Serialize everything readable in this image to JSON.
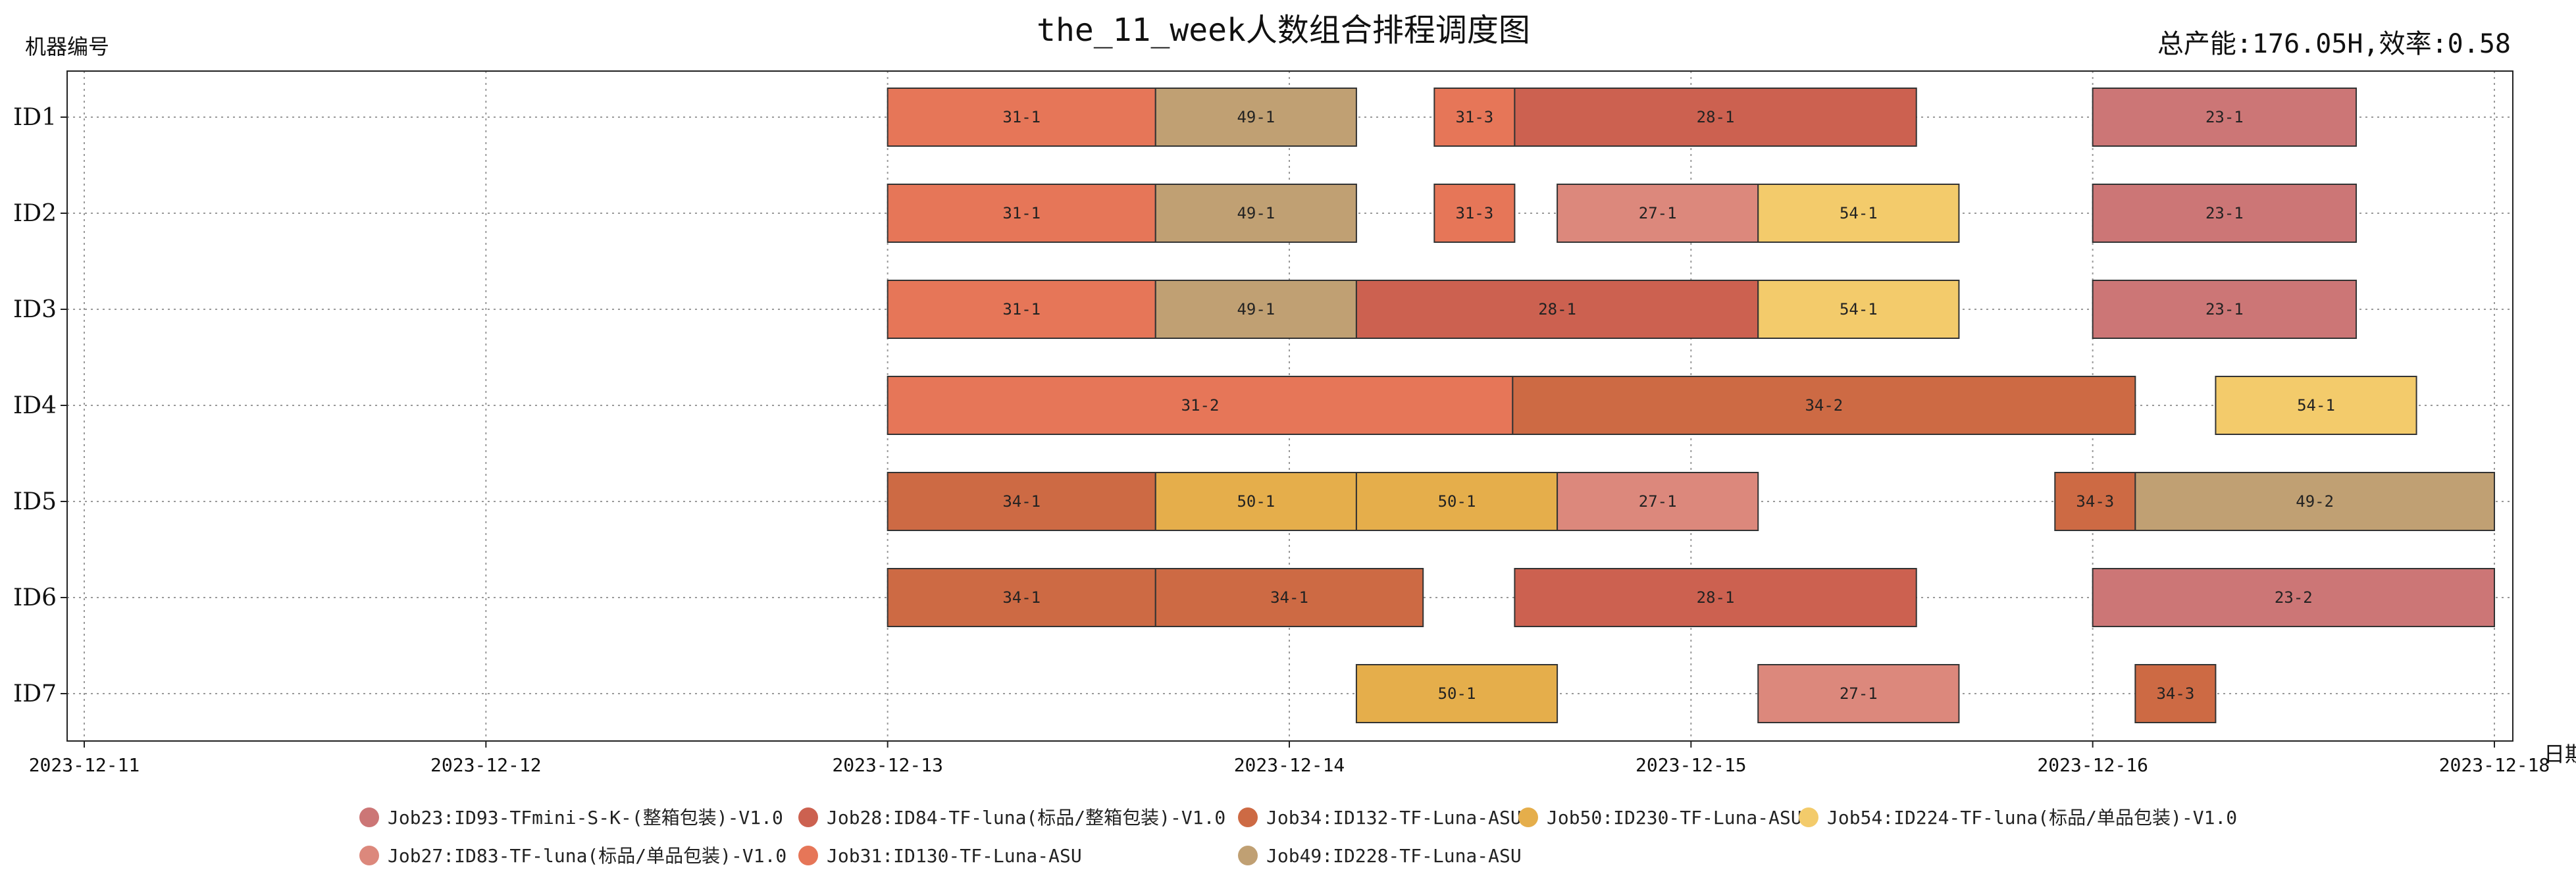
{
  "chart_data": {
    "type": "gantt",
    "title": "the_11_week人数组合排程调度图",
    "stats_text": "总产能:176.05H,效率:0.58",
    "ylabel": "机器编号",
    "xlabel": "日期",
    "machines": [
      "ID1",
      "ID2",
      "ID3",
      "ID4",
      "ID5",
      "ID6",
      "ID7"
    ],
    "x_ticks": [
      "2023-12-11",
      "2023-12-12",
      "2023-12-13",
      "2023-12-14",
      "2023-12-15",
      "2023-12-16",
      "2023-12-18"
    ],
    "x_range_days": [
      0,
      6
    ],
    "grid": true,
    "legend_position": "bottom",
    "jobs": [
      {
        "id": "Job23",
        "label": "Job23:ID93-TFmini-S-K-(整箱包装)-V1.0",
        "color": "#cc7676"
      },
      {
        "id": "Job28",
        "label": "Job28:ID84-TF-luna(标品/整箱包装)-V1.0",
        "color": "#cc6150"
      },
      {
        "id": "Job34",
        "label": "Job34:ID132-TF-Luna-ASU",
        "color": "#cd6a44"
      },
      {
        "id": "Job50",
        "label": "Job50:ID230-TF-Luna-ASU",
        "color": "#e5ae4b"
      },
      {
        "id": "Job54",
        "label": "Job54:ID224-TF-luna(标品/单品包装)-V1.0",
        "color": "#f3cb6b"
      },
      {
        "id": "Job27",
        "label": "Job27:ID83-TF-luna(标品/单品包装)-V1.0",
        "color": "#dc887c"
      },
      {
        "id": "Job31",
        "label": "Job31:ID130-TF-Luna-ASU",
        "color": "#e67658"
      },
      {
        "id": "Job49",
        "label": "Job49:ID228-TF-Luna-ASU",
        "color": "#c0a073"
      }
    ],
    "tasks": [
      {
        "machine": 0,
        "job": "Job31",
        "label": "31-1",
        "start": 2.0,
        "end": 2.667
      },
      {
        "machine": 0,
        "job": "Job49",
        "label": "49-1",
        "start": 2.667,
        "end": 3.167
      },
      {
        "machine": 0,
        "job": "Job31",
        "label": "31-3",
        "start": 3.361,
        "end": 3.561
      },
      {
        "machine": 0,
        "job": "Job28",
        "label": "28-1",
        "start": 3.561,
        "end": 4.561
      },
      {
        "machine": 0,
        "job": "Job23",
        "label": "23-1",
        "start": 5.0,
        "end": 5.656
      },
      {
        "machine": 1,
        "job": "Job31",
        "label": "31-1",
        "start": 2.0,
        "end": 2.667
      },
      {
        "machine": 1,
        "job": "Job49",
        "label": "49-1",
        "start": 2.667,
        "end": 3.167
      },
      {
        "machine": 1,
        "job": "Job31",
        "label": "31-3",
        "start": 3.361,
        "end": 3.561
      },
      {
        "machine": 1,
        "job": "Job27",
        "label": "27-1",
        "start": 3.667,
        "end": 4.167
      },
      {
        "machine": 1,
        "job": "Job54",
        "label": "54-1",
        "start": 4.167,
        "end": 4.667
      },
      {
        "machine": 1,
        "job": "Job23",
        "label": "23-1",
        "start": 5.0,
        "end": 5.656
      },
      {
        "machine": 2,
        "job": "Job31",
        "label": "31-1",
        "start": 2.0,
        "end": 2.667
      },
      {
        "machine": 2,
        "job": "Job49",
        "label": "49-1",
        "start": 2.667,
        "end": 3.167
      },
      {
        "machine": 2,
        "job": "Job28",
        "label": "28-1",
        "start": 3.167,
        "end": 4.167
      },
      {
        "machine": 2,
        "job": "Job54",
        "label": "54-1",
        "start": 4.167,
        "end": 4.667
      },
      {
        "machine": 2,
        "job": "Job23",
        "label": "23-1",
        "start": 5.0,
        "end": 5.656
      },
      {
        "machine": 3,
        "job": "Job31",
        "label": "31-2",
        "start": 2.0,
        "end": 3.556
      },
      {
        "machine": 3,
        "job": "Job34",
        "label": "34-2",
        "start": 3.556,
        "end": 5.106
      },
      {
        "machine": 3,
        "job": "Job54",
        "label": "54-1",
        "start": 5.306,
        "end": 5.806
      },
      {
        "machine": 4,
        "job": "Job34",
        "label": "34-1",
        "start": 2.0,
        "end": 2.667
      },
      {
        "machine": 4,
        "job": "Job50",
        "label": "50-1",
        "start": 2.667,
        "end": 3.167
      },
      {
        "machine": 4,
        "job": "Job50",
        "label": "50-1",
        "start": 3.167,
        "end": 3.667
      },
      {
        "machine": 4,
        "job": "Job27",
        "label": "27-1",
        "start": 3.667,
        "end": 4.167
      },
      {
        "machine": 4,
        "job": "Job34",
        "label": "34-3",
        "start": 4.906,
        "end": 5.106
      },
      {
        "machine": 4,
        "job": "Job49",
        "label": "49-2",
        "start": 5.106,
        "end": 6.0
      },
      {
        "machine": 5,
        "job": "Job34",
        "label": "34-1",
        "start": 2.0,
        "end": 2.667
      },
      {
        "machine": 5,
        "job": "Job34",
        "label": "34-1",
        "start": 2.667,
        "end": 3.333
      },
      {
        "machine": 5,
        "job": "Job28",
        "label": "28-1",
        "start": 3.561,
        "end": 4.561
      },
      {
        "machine": 5,
        "job": "Job23",
        "label": "23-2",
        "start": 5.0,
        "end": 6.0
      },
      {
        "machine": 6,
        "job": "Job50",
        "label": "50-1",
        "start": 3.167,
        "end": 3.667
      },
      {
        "machine": 6,
        "job": "Job27",
        "label": "27-1",
        "start": 4.167,
        "end": 4.667
      },
      {
        "machine": 6,
        "job": "Job34",
        "label": "34-3",
        "start": 5.106,
        "end": 5.306
      }
    ]
  }
}
